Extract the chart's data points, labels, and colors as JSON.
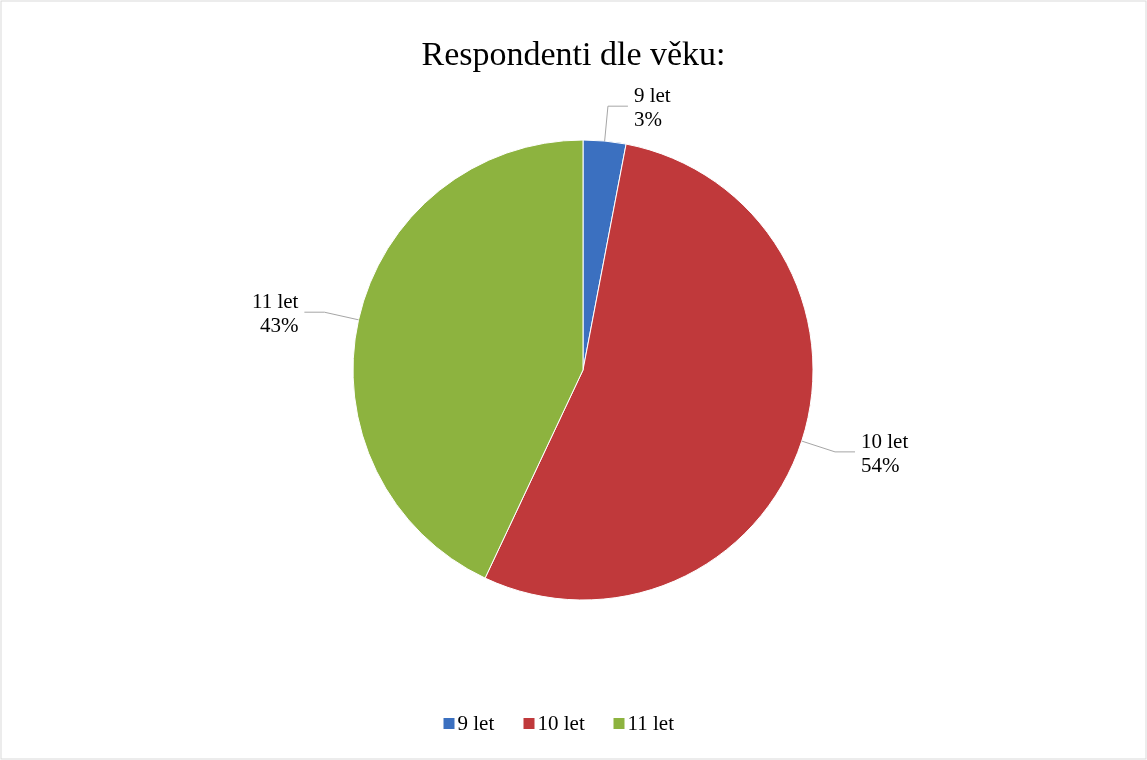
{
  "chart_data": {
    "type": "pie",
    "title": "Respondenti dle věku:",
    "categories": [
      "9 let",
      "10 let",
      "11 let"
    ],
    "values": [
      3,
      54,
      43
    ],
    "value_labels": [
      "3%",
      "54%",
      "43%"
    ],
    "colors": [
      "#3b70c0",
      "#c0393b",
      "#8db33f"
    ],
    "legend": "bottom"
  }
}
